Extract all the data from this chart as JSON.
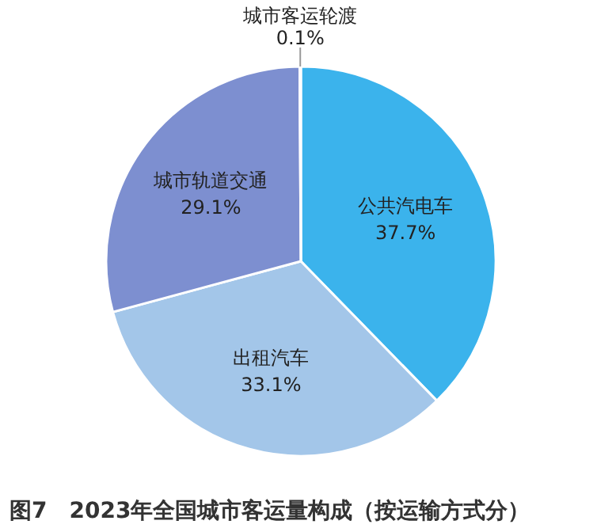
{
  "chart_data": {
    "type": "pie",
    "title": "图7　2023年全国城市客运量构成（按运输方式分）",
    "categories": [
      "公共汽电车",
      "出租汽车",
      "城市轨道交通",
      "城市客运轮渡"
    ],
    "values": [
      37.7,
      33.1,
      29.1,
      0.1
    ],
    "colors": [
      "#3bb3ec",
      "#a3c6e9",
      "#7d8fd0",
      "#5b6fb8"
    ],
    "value_labels": [
      "37.7%",
      "33.1%",
      "29.1%",
      "0.1%"
    ]
  }
}
